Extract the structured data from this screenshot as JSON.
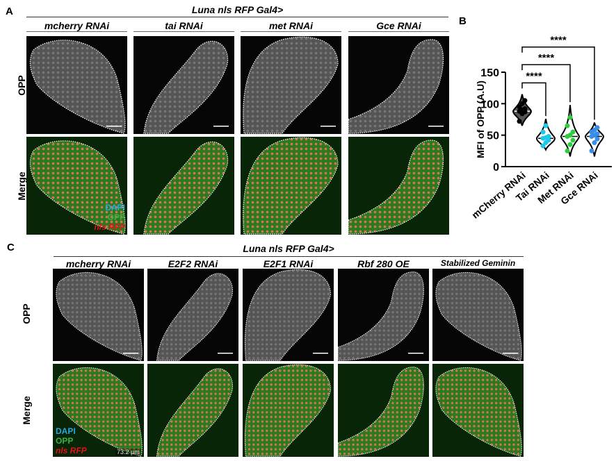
{
  "panelA": {
    "letter": "A",
    "title": "Luna nls RFP Gal4>",
    "columns": [
      "mcherry RNAi",
      "tai RNAi",
      "met RNAi",
      "Gce RNAi"
    ],
    "rows": [
      "OPP",
      "Merge"
    ],
    "legend": {
      "dapi": "DAPI",
      "opp": "OPP",
      "rfp": "nls RFP"
    }
  },
  "panelB": {
    "letter": "B"
  },
  "panelC": {
    "letter": "C",
    "title": "Luna nls RFP Gal4>",
    "columns": [
      "mcherry RNAi",
      "E2F2 RNAi",
      "E2F1 RNAi",
      "Rbf 280 OE",
      "Stabilized Geminin"
    ],
    "rows": [
      "OPP",
      "Merge"
    ],
    "legend": {
      "dapi": "DAPI",
      "opp": "OPP",
      "rfp": "nls RFP"
    },
    "scale": "73.2 µm"
  },
  "colors": {
    "dapi": "#29a8e0",
    "opp": "#3cb043",
    "rfp": "#e3131b",
    "mcherry": "#000000",
    "tai": "#1ec8e8",
    "met": "#2ecc40",
    "gce": "#3a8ee6"
  },
  "chart_data": {
    "type": "violin",
    "ylabel": "MFI of OPP (A.U)",
    "ylim": [
      0,
      150
    ],
    "yticks": [
      "0",
      "50",
      "100",
      "150"
    ],
    "categories": [
      "mCherry RNAi",
      "Tai RNAi",
      "Met RNAi",
      "Gce RNAi"
    ],
    "series": [
      {
        "category": "mCherry RNAi",
        "median": 88,
        "range": [
          65,
          115
        ],
        "points": [
          72,
          84,
          87,
          88,
          90,
          92,
          95,
          100,
          105
        ]
      },
      {
        "category": "Tai RNAi",
        "median": 45,
        "range": [
          27,
          76
        ],
        "points": [
          33,
          38,
          42,
          45,
          46,
          48,
          55,
          65
        ]
      },
      {
        "category": "Met RNAi",
        "median": 48,
        "range": [
          16,
          98
        ],
        "points": [
          25,
          35,
          42,
          48,
          50,
          55,
          65,
          78
        ]
      },
      {
        "category": "Gce RNAi",
        "median": 48,
        "range": [
          16,
          70
        ],
        "points": [
          25,
          38,
          44,
          48,
          50,
          52,
          55,
          58,
          62
        ]
      }
    ],
    "comparisons": [
      {
        "from": "mCherry RNAi",
        "to": "Tai RNAi",
        "label": "****"
      },
      {
        "from": "mCherry RNAi",
        "to": "Met RNAi",
        "label": "****"
      },
      {
        "from": "mCherry RNAi",
        "to": "Gce RNAi",
        "label": "****"
      }
    ]
  }
}
